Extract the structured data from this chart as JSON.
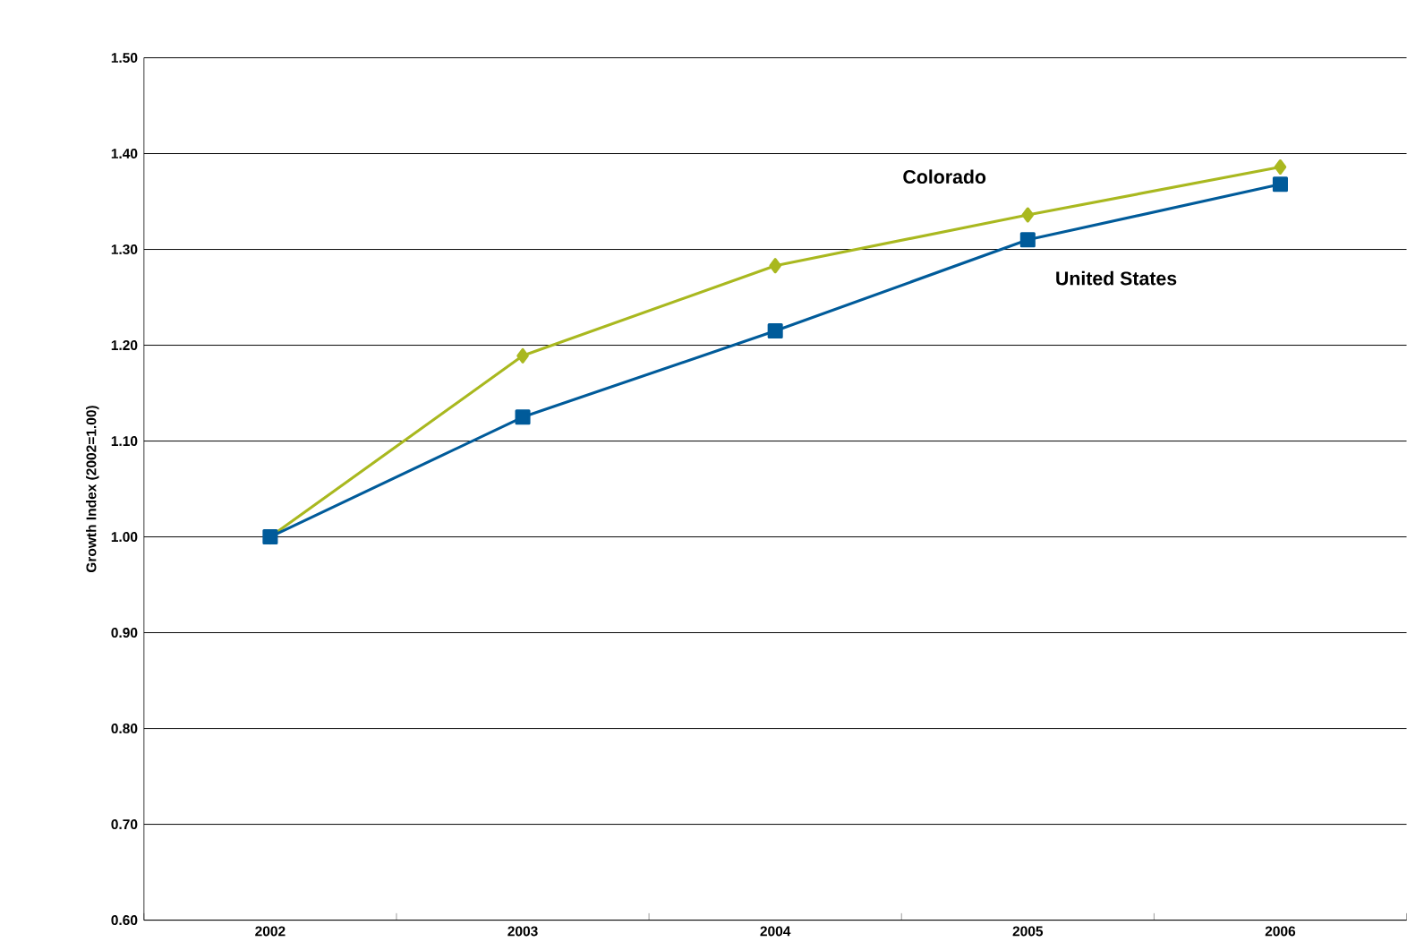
{
  "chart_data": {
    "type": "line",
    "ylabel": "Growth Index (2002=1.00)",
    "categories": [
      "2002",
      "2003",
      "2004",
      "2005",
      "2006"
    ],
    "series": [
      {
        "name": "Colorado",
        "color": "#a9b81f",
        "marker": "diamond",
        "values": [
          1.0,
          1.189,
          1.283,
          1.336,
          1.386
        ]
      },
      {
        "name": "United States",
        "color": "#005b9a",
        "marker": "square",
        "values": [
          1.0,
          1.125,
          1.215,
          1.31,
          1.368
        ]
      }
    ],
    "ylim": [
      0.6,
      1.5
    ],
    "yticks": [
      {
        "value": 0.6,
        "label": "0.60"
      },
      {
        "value": 0.7,
        "label": "0.70"
      },
      {
        "value": 0.8,
        "label": "0.80"
      },
      {
        "value": 0.9,
        "label": "0.90"
      },
      {
        "value": 1.0,
        "label": "1.00"
      },
      {
        "value": 1.1,
        "label": "1.10"
      },
      {
        "value": 1.2,
        "label": "1.20"
      },
      {
        "value": 1.3,
        "label": "1.30"
      },
      {
        "value": 1.4,
        "label": "1.40"
      },
      {
        "value": 1.5,
        "label": "1.50"
      }
    ],
    "grid": "y",
    "line_style": "solid"
  }
}
